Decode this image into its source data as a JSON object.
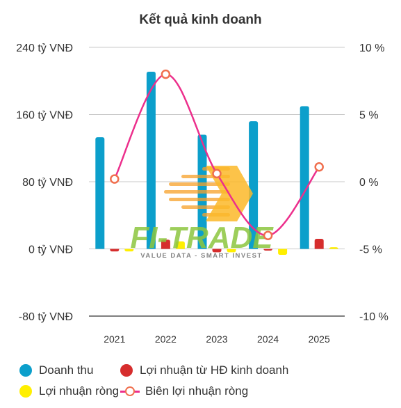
{
  "chart_data": {
    "type": "bar",
    "title": "Kết quả kinh doanh",
    "categories": [
      "2021",
      "2022",
      "2023",
      "2024",
      "2025"
    ],
    "left_axis": {
      "ticks": [
        "240 tỷ VNĐ",
        "160 tỷ VNĐ",
        "80 tỷ VNĐ",
        "0 tỷ VNĐ",
        "-80 tỷ VNĐ"
      ],
      "tick_values": [
        240,
        160,
        80,
        0,
        -80
      ],
      "range": [
        -80,
        240
      ]
    },
    "right_axis": {
      "ticks": [
        "10 %",
        "5 %",
        "0 %",
        "-5 %",
        "-10 %"
      ],
      "tick_values": [
        10,
        5,
        0,
        -5,
        -10
      ],
      "range": [
        -10,
        10
      ]
    },
    "grid": true,
    "legend_position": "bottom",
    "series": [
      {
        "name": "Doanh thu",
        "kind": "bar",
        "axis": "left",
        "color": "#0c9fcb",
        "values": [
          133,
          211,
          136,
          152,
          170
        ]
      },
      {
        "name": "Lợi nhuận từ HĐ kinh doanh",
        "kind": "bar",
        "axis": "left",
        "color": "#d62d2d",
        "values": [
          -3,
          11,
          -4,
          -2,
          12
        ]
      },
      {
        "name": "Lợi nhuận ròng",
        "kind": "bar",
        "axis": "left",
        "color": "#ffef00",
        "values": [
          -3,
          9,
          -4,
          -7,
          2
        ]
      },
      {
        "name": "Biên lợi nhuận ròng",
        "kind": "line",
        "axis": "right",
        "color": "#ec2f8c",
        "marker_color": "#f06f4e",
        "values": [
          0.2,
          8.0,
          0.6,
          -4.0,
          1.1
        ]
      }
    ]
  },
  "watermark": {
    "text": "FI-TRADE",
    "tagline": "VALUE DATA - SMART INVEST"
  }
}
